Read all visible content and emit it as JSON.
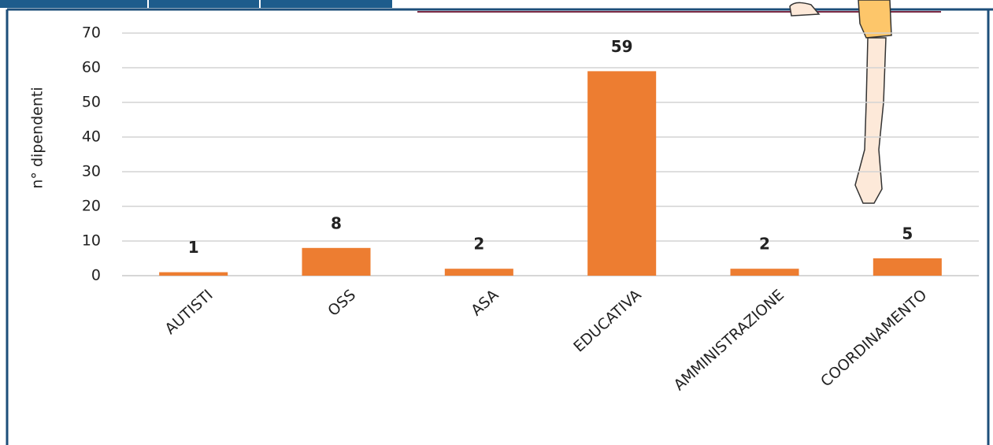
{
  "chart_data": {
    "type": "bar",
    "y_label": "n° dipendenti",
    "categories": [
      "AUTISTI",
      "OSS",
      "ASA",
      "EDUCATIVA",
      "AMMINISTRAZIONE",
      "COORDINAMENTO"
    ],
    "values": [
      1,
      8,
      2,
      59,
      2,
      5
    ],
    "color": "#ed7d31",
    "ylim": [
      0,
      70
    ],
    "yticks": [
      0,
      10,
      20,
      30,
      40,
      50,
      60,
      70
    ],
    "grid": true
  }
}
